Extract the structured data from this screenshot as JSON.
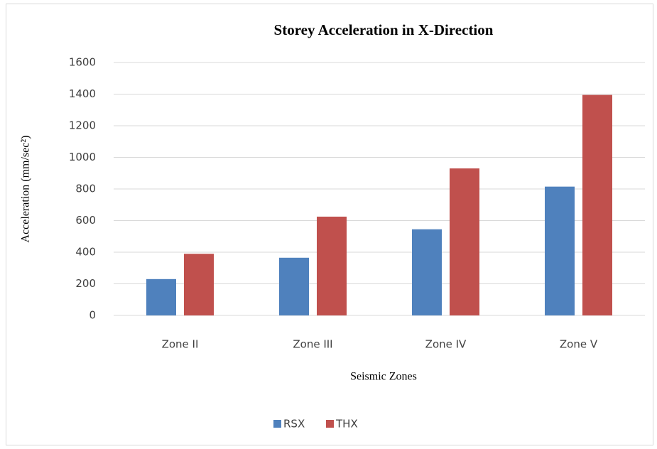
{
  "chart_data": {
    "type": "bar",
    "title": "Storey Acceleration  in X-Direction",
    "x_label": "Seismic Zones",
    "y_label": "Acceleration (mm/sec²)",
    "categories": [
      "Zone II",
      "Zone III",
      "Zone IV",
      "Zone V"
    ],
    "series": [
      {
        "name": "RSX",
        "color": "#4f81bd",
        "values": [
          230,
          365,
          545,
          815
        ]
      },
      {
        "name": "THX",
        "color": "#c0504d",
        "values": [
          390,
          625,
          930,
          1395
        ]
      }
    ],
    "ylim": [
      0,
      1600
    ],
    "yticks": [
      0,
      200,
      400,
      600,
      800,
      1000,
      1200,
      1400,
      1600
    ],
    "grid": true,
    "legend": "bottom"
  }
}
